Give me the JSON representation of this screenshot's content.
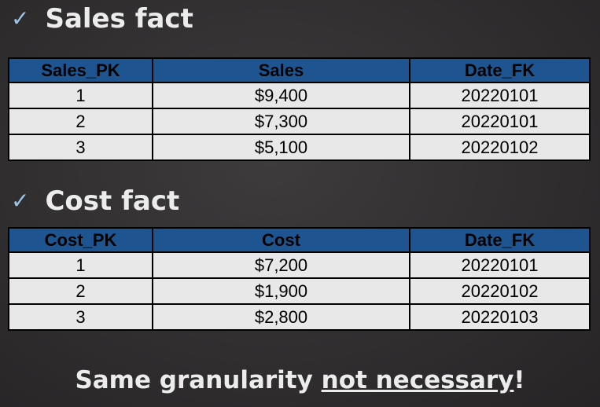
{
  "sales_section": {
    "check_icon": "✓",
    "title": "Sales fact",
    "headers": [
      "Sales_PK",
      "Sales",
      "Date_FK"
    ],
    "rows": [
      [
        "1",
        "$9,400",
        "20220101"
      ],
      [
        "2",
        "$7,300",
        "20220101"
      ],
      [
        "3",
        "$5,100",
        "20220102"
      ]
    ]
  },
  "cost_section": {
    "check_icon": "✓",
    "title": "Cost fact",
    "headers": [
      "Cost_PK",
      "Cost",
      "Date_FK"
    ],
    "rows": [
      [
        "1",
        "$7,200",
        "20220101"
      ],
      [
        "2",
        "$1,900",
        "20220102"
      ],
      [
        "3",
        "$2,800",
        "20220103"
      ]
    ]
  },
  "footer": {
    "text_before": "Same granularity ",
    "underlined": "not necessary",
    "text_after": "!"
  },
  "colors": {
    "header_fill": "#1e5591",
    "cell_fill": "#e8e8e8",
    "check_color": "#9dc3e6",
    "background": "#2f2d2e"
  }
}
